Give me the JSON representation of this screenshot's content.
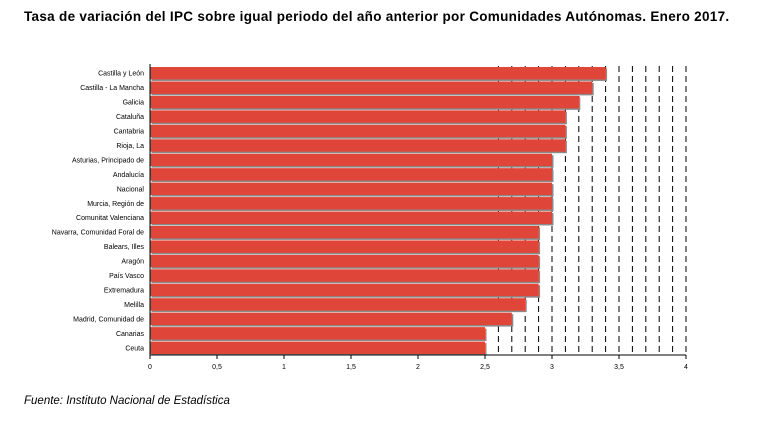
{
  "title": "Tasa de variación del IPC sobre igual periodo del año anterior por Comunidades Autónomas. Enero 2017.",
  "source": "Fuente: Instituto Nacional de Estadística",
  "colors": {
    "bar": "#e0453a",
    "bar_shadow": "#8a8a8a",
    "grid": "#000000"
  },
  "chart_data": {
    "type": "bar",
    "orientation": "horizontal",
    "categories": [
      "Castilla y León",
      "Castilla - La Mancha",
      "Galicia",
      "Cataluña",
      "Cantabria",
      "Rioja, La",
      "Asturias, Principado de",
      "Andalucía",
      "Nacional",
      "Murcia, Región de",
      "Comunitat Valenciana",
      "Navarra, Comunidad Foral de",
      "Balears, Illes",
      "Aragón",
      "País Vasco",
      "Extremadura",
      "Melilla",
      "Madrid, Comunidad de",
      "Canarias",
      "Ceuta"
    ],
    "values": [
      3.4,
      3.3,
      3.2,
      3.1,
      3.1,
      3.1,
      3.0,
      3.0,
      3.0,
      3.0,
      3.0,
      2.9,
      2.9,
      2.9,
      2.9,
      2.9,
      2.8,
      2.7,
      2.5,
      2.5
    ],
    "xlim": [
      0,
      4
    ],
    "xticks": [
      0,
      0.5,
      1,
      1.5,
      2,
      2.5,
      3,
      3.5,
      4
    ],
    "xtick_labels": [
      "0",
      "0,5",
      "1",
      "1,5",
      "2",
      "2,5",
      "3",
      "3,5",
      "4"
    ],
    "gridline_values": [
      2.6,
      2.7,
      2.8,
      2.9,
      3.0,
      3.1,
      3.2,
      3.3,
      3.4,
      3.5,
      3.6,
      3.7,
      3.8,
      3.9,
      4.0
    ],
    "grid": "vertical dashed",
    "legend": "none"
  }
}
